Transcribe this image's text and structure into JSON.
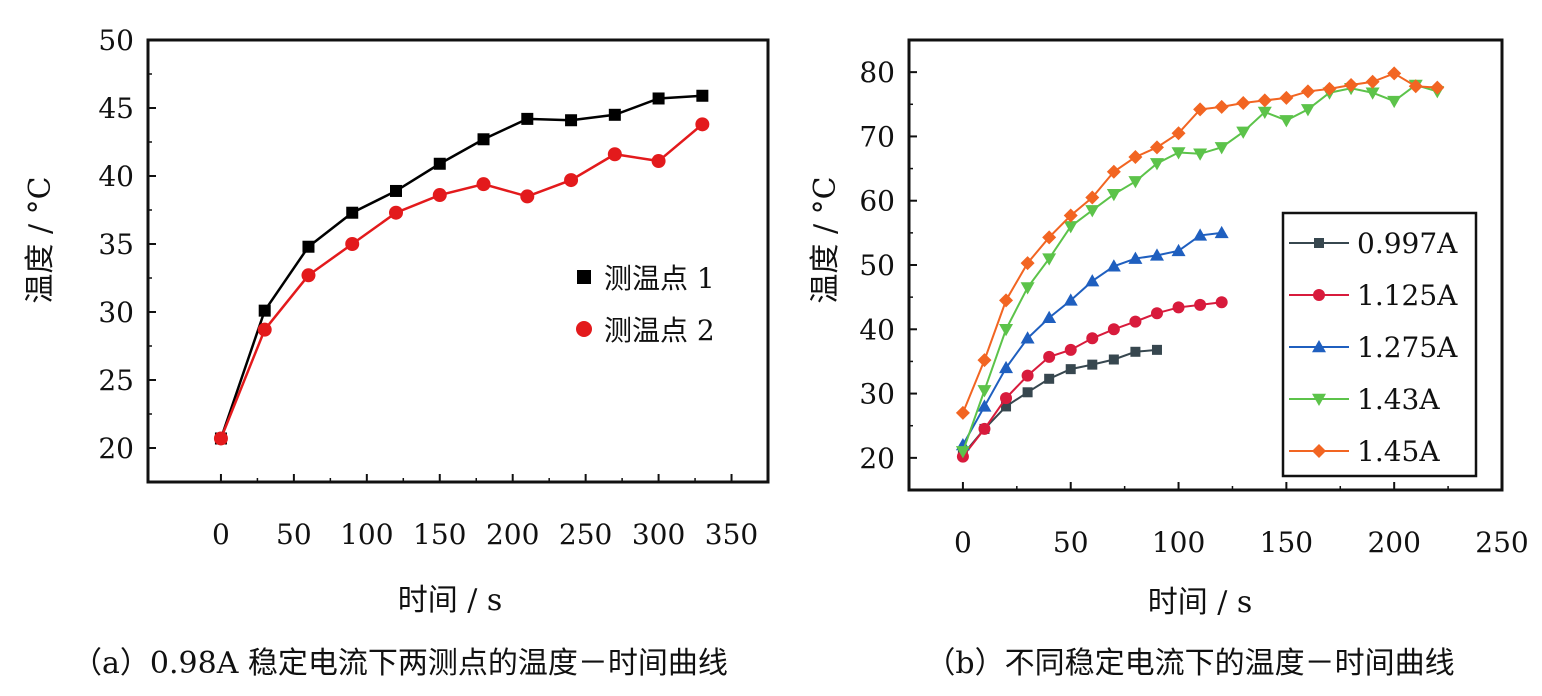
{
  "chart_data": [
    {
      "type": "line",
      "caption": "（a）0.98A 稳定电流下两测点的温度－时间曲线",
      "xlabel": "时间 / s",
      "ylabel": "温度 / °C",
      "xlim": [
        -50,
        375
      ],
      "ylim": [
        17.5,
        50
      ],
      "xticks": [
        0,
        50,
        100,
        150,
        200,
        250,
        300,
        350
      ],
      "yticks": [
        20,
        25,
        30,
        35,
        40,
        45,
        50
      ],
      "legend_position": "right",
      "series": [
        {
          "name": "测温点 1",
          "color": "#000000",
          "marker": "square",
          "x": [
            0,
            30,
            60,
            90,
            120,
            150,
            180,
            210,
            240,
            270,
            300,
            330
          ],
          "y": [
            20.7,
            30.1,
            34.8,
            37.3,
            38.9,
            40.9,
            42.7,
            44.2,
            44.1,
            44.5,
            45.7,
            45.9
          ]
        },
        {
          "name": "测温点 2",
          "color": "#e31a1c",
          "marker": "circle",
          "x": [
            0,
            30,
            60,
            90,
            120,
            150,
            180,
            210,
            240,
            270,
            300,
            330
          ],
          "y": [
            20.7,
            28.7,
            32.7,
            35.0,
            37.3,
            38.6,
            39.4,
            38.5,
            39.7,
            41.6,
            41.1,
            43.8
          ]
        }
      ]
    },
    {
      "type": "line",
      "caption": "（b）不同稳定电流下的温度－时间曲线",
      "xlabel": "时间 / s",
      "ylabel": "温度 / °C",
      "xlim": [
        -25,
        250
      ],
      "ylim": [
        15,
        85
      ],
      "xticks": [
        0,
        50,
        100,
        150,
        200,
        250
      ],
      "yticks": [
        20,
        30,
        40,
        50,
        60,
        70,
        80
      ],
      "legend_position": "right",
      "series": [
        {
          "name": "0.997A",
          "color": "#37474f",
          "marker": "square",
          "x": [
            0,
            10,
            20,
            30,
            40,
            50,
            60,
            70,
            80,
            90
          ],
          "y": [
            20.5,
            24.5,
            28.0,
            30.2,
            32.3,
            33.8,
            34.5,
            35.3,
            36.5,
            36.8
          ]
        },
        {
          "name": "1.125A",
          "color": "#d81b3c",
          "marker": "circle",
          "x": [
            0,
            10,
            20,
            30,
            40,
            50,
            60,
            70,
            80,
            90,
            100,
            110,
            120
          ],
          "y": [
            20.2,
            24.5,
            29.3,
            32.8,
            35.7,
            36.8,
            38.6,
            40.0,
            41.2,
            42.5,
            43.4,
            43.8,
            44.2
          ]
        },
        {
          "name": "1.275A",
          "color": "#1f5fbf",
          "marker": "triangle-up",
          "x": [
            0,
            10,
            20,
            30,
            40,
            50,
            60,
            70,
            80,
            90,
            100,
            110,
            120
          ],
          "y": [
            22.0,
            28.0,
            34.0,
            38.6,
            41.8,
            44.5,
            47.5,
            49.8,
            51.0,
            51.5,
            52.2,
            54.6,
            55.0
          ]
        },
        {
          "name": "1.43A",
          "color": "#5cc34a",
          "marker": "triangle-down",
          "x": [
            0,
            10,
            20,
            30,
            40,
            50,
            60,
            70,
            80,
            90,
            100,
            110,
            120,
            130,
            140,
            150,
            160,
            170,
            180,
            190,
            200,
            210,
            220
          ],
          "y": [
            21.0,
            30.5,
            40.0,
            46.5,
            51.0,
            56.0,
            58.5,
            61.0,
            63.0,
            65.8,
            67.5,
            67.3,
            68.3,
            70.7,
            73.8,
            72.5,
            74.2,
            76.8,
            77.5,
            76.8,
            75.5,
            78.0,
            77.0
          ]
        },
        {
          "name": "1.45A",
          "color": "#f26522",
          "marker": "diamond",
          "x": [
            0,
            10,
            20,
            30,
            40,
            50,
            60,
            70,
            80,
            90,
            100,
            110,
            120,
            130,
            140,
            150,
            160,
            170,
            180,
            190,
            200,
            210,
            220
          ],
          "y": [
            27.0,
            35.2,
            44.5,
            50.3,
            54.3,
            57.7,
            60.5,
            64.5,
            66.8,
            68.3,
            70.5,
            74.2,
            74.6,
            75.2,
            75.6,
            76.0,
            77.0,
            77.4,
            78.0,
            78.5,
            79.8,
            77.8,
            77.6
          ]
        }
      ]
    }
  ]
}
